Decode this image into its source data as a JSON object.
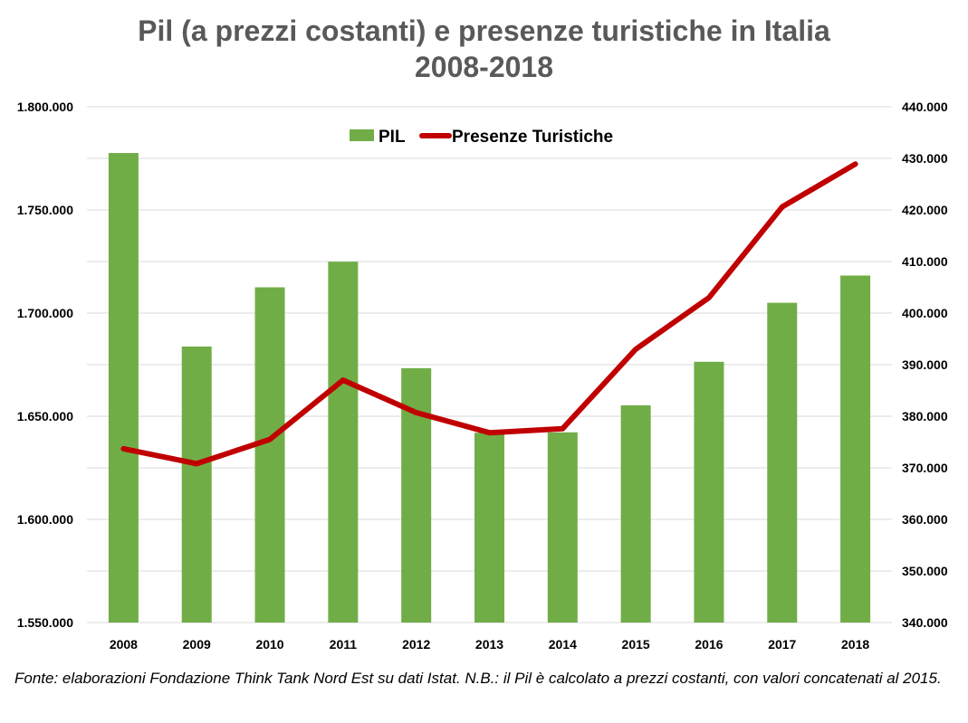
{
  "chart_data": {
    "type": "bar+line",
    "title_line1": "Pil (a prezzi costanti) e presenze turistiche in Italia",
    "title_line2": "2008-2018",
    "categories": [
      "2008",
      "2009",
      "2010",
      "2011",
      "2012",
      "2013",
      "2014",
      "2015",
      "2016",
      "2017",
      "2018"
    ],
    "series": [
      {
        "name": "PIL",
        "type": "bar",
        "axis": "left",
        "color": "#70ad47",
        "values": [
          1777600,
          1683800,
          1712500,
          1724900,
          1673300,
          1642000,
          1642200,
          1655300,
          1676400,
          1705000,
          1718200
        ]
      },
      {
        "name": "Presenze Turistiche",
        "type": "line",
        "axis": "right",
        "color": "#c00000",
        "values": [
          373700,
          370800,
          375500,
          387000,
          380700,
          376800,
          377600,
          393000,
          403000,
          420600,
          428900
        ]
      }
    ],
    "y_left": {
      "min": 1550000,
      "max": 1800000,
      "ticks": [
        "1.550.000",
        "1.600.000",
        "1.650.000",
        "1.700.000",
        "1.750.000",
        "1.800.000"
      ]
    },
    "y_right": {
      "min": 340000,
      "max": 440000,
      "ticks": [
        "340.000",
        "350.000",
        "360.000",
        "370.000",
        "380.000",
        "390.000",
        "400.000",
        "410.000",
        "420.000",
        "430.000",
        "440.000"
      ]
    },
    "grid": true,
    "legend_position": "top-center",
    "colors": {
      "bar": "#70ad47",
      "line": "#c00000",
      "grid": "#d9d9d9",
      "title": "#595959"
    }
  },
  "footer": {
    "source": "Fonte: elaborazioni Fondazione Think Tank Nord Est su dati Istat. N.B.: il Pil è calcolato a prezzi costanti, con valori concatenati al 2015."
  }
}
